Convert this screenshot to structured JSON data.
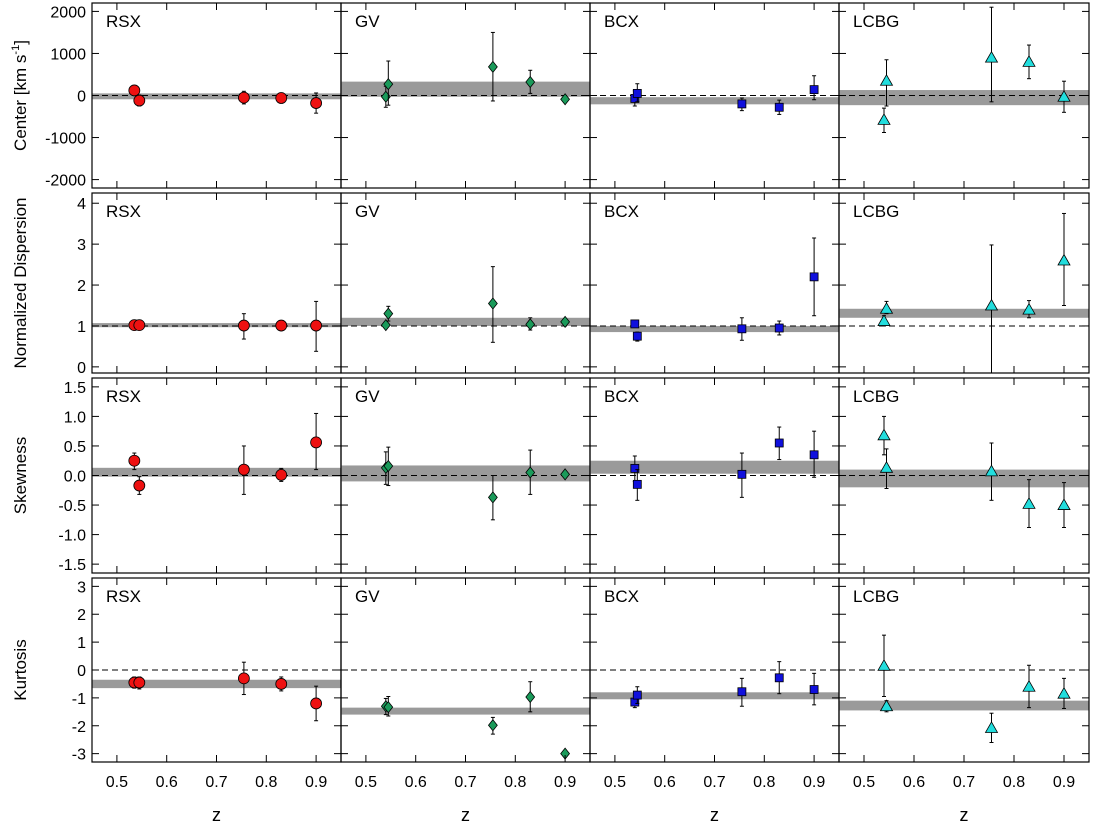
{
  "chart_data": {
    "type": "scatter",
    "columns": [
      "RSX",
      "GV",
      "BCX",
      "LCBG"
    ],
    "xlabel": "z",
    "xlim": [
      0.45,
      0.95
    ],
    "xticks": [
      0.5,
      0.6,
      0.7,
      0.8,
      0.9
    ],
    "x": [
      0.535,
      0.545,
      0.755,
      0.83,
      0.9
    ],
    "styles": {
      "RSX": {
        "marker": "circle",
        "color": "#ee1111"
      },
      "GV": {
        "marker": "diamond",
        "color": "#1a9a5a"
      },
      "BCX": {
        "marker": "square",
        "color": "#1010dd"
      },
      "LCBG": {
        "marker": "triangle",
        "color": "#22dddd"
      }
    },
    "band_color": "#9a9a9a",
    "reference_line": "dashed",
    "rows": [
      {
        "ylabel_main": "Center [km s",
        "ylabel_sup": "-1",
        "ylabel_close": "]",
        "ylim": [
          -2200,
          2200
        ],
        "ytick_values": [
          -2000,
          -1000,
          0,
          1000,
          2000
        ],
        "yticks": [
          "-2000",
          "-1000",
          "0",
          "1000",
          "2000"
        ],
        "reference": 0,
        "panels": {
          "RSX": {
            "band": [
              -90,
              50
            ],
            "points": [
              {
                "x": 0.535,
                "y": 120,
                "lo": 0,
                "hi": 230
              },
              {
                "x": 0.545,
                "y": -120,
                "lo": -250,
                "hi": 10
              },
              {
                "x": 0.755,
                "y": -50,
                "lo": -200,
                "hi": 100
              },
              {
                "x": 0.83,
                "y": -60,
                "lo": -180,
                "hi": 60
              },
              {
                "x": 0.9,
                "y": -180,
                "lo": -420,
                "hi": 60
              }
            ]
          },
          "GV": {
            "band": [
              -30,
              330
            ],
            "points": [
              {
                "x": 0.54,
                "y": -30,
                "lo": -280,
                "hi": 220
              },
              {
                "x": 0.545,
                "y": 270,
                "lo": -230,
                "hi": 820
              },
              {
                "x": 0.755,
                "y": 680,
                "lo": -130,
                "hi": 1500
              },
              {
                "x": 0.83,
                "y": 320,
                "lo": 50,
                "hi": 600
              },
              {
                "x": 0.9,
                "y": -90,
                "lo": -100,
                "hi": -80
              }
            ]
          },
          "BCX": {
            "band": [
              -210,
              -40
            ],
            "points": [
              {
                "x": 0.54,
                "y": -70,
                "lo": -250,
                "hi": 110
              },
              {
                "x": 0.545,
                "y": 50,
                "lo": -150,
                "hi": 280
              },
              {
                "x": 0.755,
                "y": -200,
                "lo": -360,
                "hi": -60
              },
              {
                "x": 0.83,
                "y": -280,
                "lo": -450,
                "hi": -110
              },
              {
                "x": 0.9,
                "y": 140,
                "lo": -100,
                "hi": 470
              }
            ]
          },
          "LCBG": {
            "band": [
              -230,
              130
            ],
            "points": [
              {
                "x": 0.54,
                "y": -580,
                "lo": -880,
                "hi": -300
              },
              {
                "x": 0.545,
                "y": 350,
                "lo": -250,
                "hi": 850
              },
              {
                "x": 0.755,
                "y": 900,
                "lo": -150,
                "hi": 2100
              },
              {
                "x": 0.83,
                "y": 800,
                "lo": 400,
                "hi": 1200
              },
              {
                "x": 0.9,
                "y": -30,
                "lo": -400,
                "hi": 340
              }
            ]
          }
        }
      },
      {
        "ylabel_main": "Normalized Dispersion",
        "ylim": [
          -0.15,
          4.25
        ],
        "ytick_values": [
          0,
          1,
          2,
          3,
          4
        ],
        "yticks": [
          "0",
          "1",
          "2",
          "3",
          "4"
        ],
        "reference": 1,
        "panels": {
          "RSX": {
            "band": [
              0.97,
              1.07
            ],
            "points": [
              {
                "x": 0.535,
                "y": 1.02,
                "lo": 0.97,
                "hi": 1.07
              },
              {
                "x": 0.545,
                "y": 1.02,
                "lo": 0.97,
                "hi": 1.07
              },
              {
                "x": 0.755,
                "y": 1.01,
                "lo": 0.68,
                "hi": 1.3
              },
              {
                "x": 0.83,
                "y": 1.01,
                "lo": 0.95,
                "hi": 1.08
              },
              {
                "x": 0.9,
                "y": 1.01,
                "lo": 0.38,
                "hi": 1.6
              }
            ]
          },
          "GV": {
            "band": [
              1.0,
              1.2
            ],
            "points": [
              {
                "x": 0.54,
                "y": 1.02,
                "lo": 0.97,
                "hi": 1.08
              },
              {
                "x": 0.545,
                "y": 1.3,
                "lo": 1.12,
                "hi": 1.48
              },
              {
                "x": 0.755,
                "y": 1.55,
                "lo": 0.6,
                "hi": 2.45
              },
              {
                "x": 0.83,
                "y": 1.04,
                "lo": 0.9,
                "hi": 1.2
              },
              {
                "x": 0.9,
                "y": 1.1,
                "lo": 1.05,
                "hi": 1.15
              }
            ]
          },
          "BCX": {
            "band": [
              0.85,
              1.0
            ],
            "points": [
              {
                "x": 0.54,
                "y": 1.05,
                "lo": 0.97,
                "hi": 1.12
              },
              {
                "x": 0.545,
                "y": 0.75,
                "lo": 0.63,
                "hi": 0.85
              },
              {
                "x": 0.755,
                "y": 0.93,
                "lo": 0.65,
                "hi": 1.2
              },
              {
                "x": 0.83,
                "y": 0.95,
                "lo": 0.78,
                "hi": 1.12
              },
              {
                "x": 0.9,
                "y": 2.2,
                "lo": 1.25,
                "hi": 3.15
              }
            ]
          },
          "LCBG": {
            "band": [
              1.2,
              1.42
            ],
            "points": [
              {
                "x": 0.54,
                "y": 1.12,
                "lo": 1.0,
                "hi": 1.25
              },
              {
                "x": 0.545,
                "y": 1.42,
                "lo": 1.3,
                "hi": 1.6
              },
              {
                "x": 0.755,
                "y": 1.5,
                "lo": -0.15,
                "hi": 2.98
              },
              {
                "x": 0.83,
                "y": 1.4,
                "lo": 1.2,
                "hi": 1.62
              },
              {
                "x": 0.9,
                "y": 2.6,
                "lo": 1.5,
                "hi": 3.75
              }
            ]
          }
        }
      },
      {
        "ylabel_main": "Skewness",
        "ylim": [
          -1.65,
          1.65
        ],
        "ytick_values": [
          -1.5,
          -1.0,
          -0.5,
          0.0,
          0.5,
          1.0,
          1.5
        ],
        "yticks": [
          "-1.5",
          "-1.0",
          "-0.5",
          "0.0",
          "0.5",
          "1.0",
          "1.5"
        ],
        "reference": 0,
        "panels": {
          "RSX": {
            "band": [
              -0.02,
              0.13
            ],
            "points": [
              {
                "x": 0.535,
                "y": 0.25,
                "lo": 0.1,
                "hi": 0.38
              },
              {
                "x": 0.545,
                "y": -0.17,
                "lo": -0.32,
                "hi": -0.02
              },
              {
                "x": 0.755,
                "y": 0.1,
                "lo": -0.32,
                "hi": 0.5
              },
              {
                "x": 0.83,
                "y": 0.01,
                "lo": -0.1,
                "hi": 0.12
              },
              {
                "x": 0.9,
                "y": 0.56,
                "lo": 0.1,
                "hi": 1.05
              }
            ]
          },
          "GV": {
            "band": [
              -0.1,
              0.17
            ],
            "points": [
              {
                "x": 0.54,
                "y": 0.13,
                "lo": -0.15,
                "hi": 0.4
              },
              {
                "x": 0.545,
                "y": 0.16,
                "lo": -0.17,
                "hi": 0.48
              },
              {
                "x": 0.755,
                "y": -0.37,
                "lo": -0.75,
                "hi": 0.0
              },
              {
                "x": 0.83,
                "y": 0.05,
                "lo": -0.32,
                "hi": 0.43
              },
              {
                "x": 0.9,
                "y": 0.02,
                "lo": -0.02,
                "hi": 0.06
              }
            ]
          },
          "BCX": {
            "band": [
              0.03,
              0.25
            ],
            "points": [
              {
                "x": 0.54,
                "y": 0.12,
                "lo": -0.1,
                "hi": 0.33
              },
              {
                "x": 0.545,
                "y": -0.15,
                "lo": -0.42,
                "hi": 0.1
              },
              {
                "x": 0.755,
                "y": 0.02,
                "lo": -0.37,
                "hi": 0.38
              },
              {
                "x": 0.83,
                "y": 0.55,
                "lo": 0.27,
                "hi": 0.82
              },
              {
                "x": 0.9,
                "y": 0.35,
                "lo": -0.03,
                "hi": 0.75
              }
            ]
          },
          "LCBG": {
            "band": [
              -0.2,
              0.1
            ],
            "points": [
              {
                "x": 0.54,
                "y": 0.68,
                "lo": 0.35,
                "hi": 1.0
              },
              {
                "x": 0.545,
                "y": 0.13,
                "lo": -0.22,
                "hi": 0.45
              },
              {
                "x": 0.755,
                "y": 0.07,
                "lo": -0.42,
                "hi": 0.55
              },
              {
                "x": 0.83,
                "y": -0.48,
                "lo": -0.88,
                "hi": -0.07
              },
              {
                "x": 0.9,
                "y": -0.5,
                "lo": -0.88,
                "hi": -0.12
              }
            ]
          }
        }
      },
      {
        "ylabel_main": "Kurtosis",
        "ylim": [
          -3.3,
          3.3
        ],
        "ytick_values": [
          -3,
          -2,
          -1,
          0,
          1,
          2,
          3
        ],
        "yticks": [
          "-3",
          "-2",
          "-1",
          "0",
          "1",
          "2",
          "3"
        ],
        "reference": 0,
        "panels": {
          "RSX": {
            "band": [
              -0.65,
              -0.35
            ],
            "points": [
              {
                "x": 0.535,
                "y": -0.45,
                "lo": -0.65,
                "hi": -0.25
              },
              {
                "x": 0.545,
                "y": -0.45,
                "lo": -0.68,
                "hi": -0.25
              },
              {
                "x": 0.755,
                "y": -0.3,
                "lo": -0.88,
                "hi": 0.28
              },
              {
                "x": 0.83,
                "y": -0.5,
                "lo": -0.75,
                "hi": -0.25
              },
              {
                "x": 0.9,
                "y": -1.2,
                "lo": -1.82,
                "hi": -0.58
              }
            ]
          },
          "GV": {
            "band": [
              -1.6,
              -1.35
            ],
            "points": [
              {
                "x": 0.54,
                "y": -1.3,
                "lo": -1.6,
                "hi": -1.02
              },
              {
                "x": 0.545,
                "y": -1.33,
                "lo": -1.65,
                "hi": -0.95
              },
              {
                "x": 0.755,
                "y": -1.98,
                "lo": -2.3,
                "hi": -1.7
              },
              {
                "x": 0.83,
                "y": -0.97,
                "lo": -1.5,
                "hi": -0.42
              },
              {
                "x": 0.9,
                "y": -3.0,
                "lo": -3.05,
                "hi": -2.95
              }
            ]
          },
          "BCX": {
            "band": [
              -1.05,
              -0.8
            ],
            "points": [
              {
                "x": 0.54,
                "y": -1.15,
                "lo": -1.35,
                "hi": -0.93
              },
              {
                "x": 0.545,
                "y": -0.9,
                "lo": -1.2,
                "hi": -0.6
              },
              {
                "x": 0.755,
                "y": -0.78,
                "lo": -1.3,
                "hi": -0.3
              },
              {
                "x": 0.83,
                "y": -0.28,
                "lo": -0.85,
                "hi": 0.3
              },
              {
                "x": 0.9,
                "y": -0.7,
                "lo": -1.25,
                "hi": -0.12
              }
            ]
          },
          "LCBG": {
            "band": [
              -1.45,
              -1.1
            ],
            "points": [
              {
                "x": 0.54,
                "y": 0.15,
                "lo": -0.95,
                "hi": 1.25
              },
              {
                "x": 0.545,
                "y": -1.3,
                "lo": -1.5,
                "hi": -1.1
              },
              {
                "x": 0.755,
                "y": -2.08,
                "lo": -2.6,
                "hi": -1.55
              },
              {
                "x": 0.83,
                "y": -0.6,
                "lo": -1.35,
                "hi": 0.17
              },
              {
                "x": 0.9,
                "y": -0.85,
                "lo": -1.38,
                "hi": -0.3
              }
            ]
          }
        }
      }
    ]
  }
}
